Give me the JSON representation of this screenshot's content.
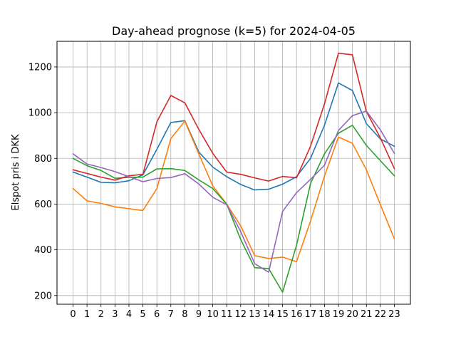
{
  "chart_data": {
    "type": "line",
    "title": "Day-ahead prognose (k=5) for 2024-04-05",
    "xlabel": "",
    "ylabel": "Elspot pris i DKK",
    "x": [
      0,
      1,
      2,
      3,
      4,
      5,
      6,
      7,
      8,
      9,
      10,
      11,
      12,
      13,
      14,
      15,
      16,
      17,
      18,
      19,
      20,
      21,
      22,
      23
    ],
    "xlim": [
      -1.15,
      24.15
    ],
    "ylim": [
      162,
      1312
    ],
    "yticks": [
      200,
      400,
      600,
      800,
      1000,
      1200
    ],
    "grid": true,
    "series": [
      {
        "color": "#1f77b4",
        "values": [
          740,
          718,
          695,
          693,
          702,
          728,
          840,
          957,
          965,
          828,
          762,
          720,
          686,
          662,
          665,
          687,
          720,
          800,
          945,
          1130,
          1097,
          952,
          885,
          853
        ]
      },
      {
        "color": "#ff7f0e",
        "values": [
          668,
          614,
          603,
          588,
          580,
          572,
          668,
          887,
          963,
          820,
          680,
          600,
          505,
          375,
          362,
          368,
          348,
          526,
          723,
          893,
          866,
          750,
          598,
          448
        ]
      },
      {
        "color": "#2ca02c",
        "values": [
          800,
          768,
          747,
          713,
          717,
          718,
          754,
          755,
          747,
          706,
          668,
          600,
          445,
          322,
          318,
          215,
          420,
          690,
          820,
          910,
          945,
          857,
          790,
          724
        ]
      },
      {
        "color": "#d62728",
        "values": [
          750,
          734,
          718,
          705,
          724,
          730,
          960,
          1075,
          1043,
          927,
          822,
          740,
          730,
          715,
          701,
          721,
          715,
          853,
          1038,
          1260,
          1253,
          1005,
          890,
          755
        ]
      },
      {
        "color": "#9467bd",
        "values": [
          820,
          775,
          760,
          742,
          720,
          698,
          712,
          716,
          733,
          688,
          630,
          597,
          480,
          340,
          302,
          568,
          650,
          708,
          770,
          922,
          987,
          1007,
          925,
          822
        ]
      }
    ]
  }
}
